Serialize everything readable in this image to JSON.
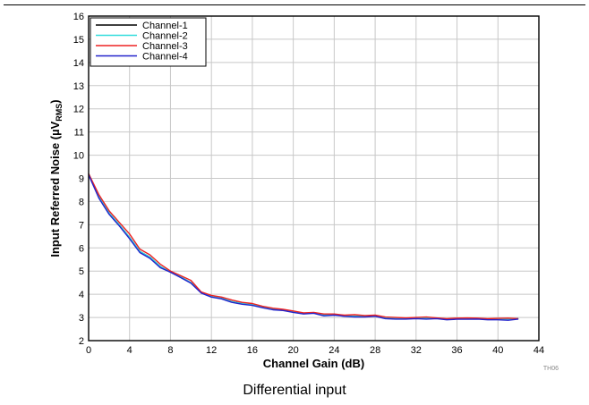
{
  "chart_data": {
    "type": "line",
    "title": "",
    "xlabel": "Channel Gain (dB)",
    "ylabel_main": "Input Referred Noise (µV",
    "ylabel_sub": "RMS",
    "ylabel_close": ")",
    "xlim": [
      0,
      44
    ],
    "ylim": [
      2,
      16
    ],
    "xticks": [
      0,
      4,
      8,
      12,
      16,
      20,
      24,
      28,
      32,
      36,
      40,
      44
    ],
    "yticks": [
      2,
      3,
      4,
      5,
      6,
      7,
      8,
      9,
      10,
      11,
      12,
      13,
      14,
      15,
      16
    ],
    "grid": true,
    "legend_position": "top-left",
    "x": [
      0,
      1,
      2,
      3,
      4,
      5,
      6,
      7,
      8,
      9,
      10,
      11,
      12,
      13,
      14,
      15,
      16,
      17,
      18,
      19,
      20,
      21,
      22,
      23,
      24,
      25,
      26,
      27,
      28,
      29,
      30,
      31,
      32,
      33,
      34,
      35,
      36,
      37,
      38,
      39,
      40,
      41,
      42
    ],
    "series": [
      {
        "name": "Channel-1",
        "color": "#000000",
        "values": [
          9.2,
          8.2,
          7.5,
          7.0,
          6.45,
          5.85,
          5.6,
          5.2,
          4.95,
          4.75,
          4.5,
          4.08,
          3.9,
          3.82,
          3.68,
          3.6,
          3.55,
          3.45,
          3.35,
          3.32,
          3.25,
          3.17,
          3.2,
          3.1,
          3.12,
          3.08,
          3.05,
          3.05,
          3.08,
          2.98,
          2.97,
          2.96,
          2.97,
          2.96,
          2.97,
          2.93,
          2.95,
          2.94,
          2.95,
          2.93,
          2.93,
          2.92,
          2.95
        ]
      },
      {
        "name": "Channel-2",
        "color": "#33dddd",
        "values": [
          9.2,
          8.2,
          7.5,
          7.0,
          6.45,
          5.85,
          5.6,
          5.2,
          4.95,
          4.75,
          4.5,
          4.08,
          3.9,
          3.82,
          3.68,
          3.6,
          3.55,
          3.45,
          3.35,
          3.32,
          3.25,
          3.17,
          3.2,
          3.1,
          3.12,
          3.08,
          3.05,
          3.05,
          3.08,
          2.98,
          2.97,
          2.96,
          2.97,
          2.96,
          2.97,
          2.93,
          2.95,
          2.94,
          2.95,
          2.93,
          2.93,
          2.92,
          2.95
        ]
      },
      {
        "name": "Channel-3",
        "color": "#ee2222",
        "values": [
          9.2,
          8.3,
          7.6,
          7.1,
          6.6,
          5.95,
          5.7,
          5.3,
          5.0,
          4.8,
          4.6,
          4.1,
          3.95,
          3.88,
          3.75,
          3.65,
          3.6,
          3.48,
          3.4,
          3.35,
          3.28,
          3.2,
          3.22,
          3.15,
          3.15,
          3.1,
          3.12,
          3.08,
          3.1,
          3.02,
          3.0,
          2.98,
          3.0,
          3.02,
          2.98,
          2.95,
          2.97,
          2.98,
          2.97,
          2.95,
          2.96,
          2.97,
          2.95
        ]
      },
      {
        "name": "Channel-4",
        "color": "#2222cc",
        "values": [
          9.15,
          8.15,
          7.45,
          6.95,
          6.4,
          5.8,
          5.55,
          5.15,
          4.95,
          4.72,
          4.48,
          4.05,
          3.88,
          3.8,
          3.65,
          3.57,
          3.52,
          3.42,
          3.33,
          3.3,
          3.22,
          3.15,
          3.18,
          3.07,
          3.1,
          3.05,
          3.02,
          3.02,
          3.05,
          2.95,
          2.93,
          2.93,
          2.95,
          2.93,
          2.95,
          2.9,
          2.92,
          2.92,
          2.93,
          2.9,
          2.9,
          2.88,
          2.93
        ]
      }
    ],
    "figure_code": "TH06"
  },
  "caption": "Differential input"
}
